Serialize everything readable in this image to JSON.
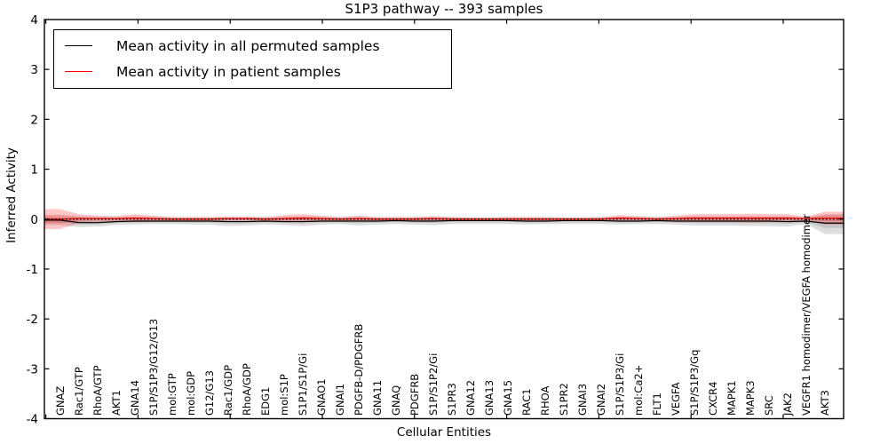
{
  "title": "S1P3 pathway -- 393 samples",
  "axes": {
    "ylabel": "Inferred Activity",
    "xlabel": "Cellular Entities",
    "y_tick_values": [
      4,
      3,
      2,
      1,
      0,
      -1,
      -2,
      -3,
      -4
    ],
    "y_tick_labels": [
      "4",
      "3",
      "2",
      "1",
      "0",
      "-1",
      "-2",
      "-3",
      "-4"
    ]
  },
  "legend": {
    "items": [
      {
        "label": "Mean activity in all permuted samples",
        "color": "#000000"
      },
      {
        "label": "Mean activity in patient samples",
        "color": "#ff0000"
      }
    ]
  },
  "chart_data": {
    "type": "line",
    "title": "S1P3 pathway -- 393 samples",
    "xlabel": "Cellular Entities",
    "ylabel": "Inferred Activity",
    "ylim": [
      -4,
      4
    ],
    "grid": false,
    "legend_position": "upper left",
    "zero_line": 0,
    "categories": [
      "GNAZ",
      "Rac1/GTP",
      "RhoA/GTP",
      "AKT1",
      "GNA14",
      "S1P/S1P3/G12/G13",
      "mol:GTP",
      "mol:GDP",
      "G12/G13",
      "Rac1/GDP",
      "RhoA/GDP",
      "EDG1",
      "mol:S1P",
      "S1P1/S1P/Gi",
      "GNAO1",
      "GNAI1",
      "PDGFB-D/PDGFRB",
      "GNA11",
      "GNAQ",
      "PDGFRB",
      "S1P/S1P2/Gi",
      "S1PR3",
      "GNA12",
      "GNA13",
      "GNA15",
      "RAC1",
      "RHOA",
      "S1PR2",
      "GNAI3",
      "GNAI2",
      "S1P/S1P3/Gi",
      "mol:Ca2+",
      "FLT1",
      "VEGFA",
      "S1P/S1P3/Gq",
      "CXCR4",
      "MAPK1",
      "MAPK3",
      "SRC",
      "JAK2",
      "VEGFR1 homodimer/VEGFA homodimer",
      "AKT3"
    ],
    "series": [
      {
        "name": "Mean activity in all permuted samples",
        "color": "#000000",
        "band_color": "#000000",
        "band_alpha": 0.13,
        "mean": [
          -0.02,
          -0.07,
          -0.07,
          -0.05,
          -0.04,
          -0.04,
          -0.04,
          -0.04,
          -0.04,
          -0.05,
          -0.05,
          -0.04,
          -0.05,
          -0.05,
          -0.04,
          -0.04,
          -0.04,
          -0.04,
          -0.03,
          -0.04,
          -0.04,
          -0.03,
          -0.03,
          -0.03,
          -0.03,
          -0.04,
          -0.04,
          -0.03,
          -0.03,
          -0.03,
          -0.04,
          -0.04,
          -0.03,
          -0.04,
          -0.04,
          -0.04,
          -0.04,
          -0.04,
          -0.04,
          -0.05,
          -0.04,
          -0.08
        ],
        "upper": [
          0.06,
          0.05,
          0.04,
          0.04,
          0.04,
          0.04,
          0.04,
          0.04,
          0.04,
          0.04,
          0.04,
          0.04,
          0.04,
          0.05,
          0.04,
          0.04,
          0.04,
          0.04,
          0.04,
          0.04,
          0.04,
          0.04,
          0.04,
          0.04,
          0.04,
          0.04,
          0.04,
          0.04,
          0.04,
          0.04,
          0.04,
          0.04,
          0.04,
          0.04,
          0.05,
          0.05,
          0.05,
          0.05,
          0.05,
          0.05,
          0.03,
          0.1
        ],
        "lower": [
          -0.12,
          -0.16,
          -0.15,
          -0.12,
          -0.11,
          -0.1,
          -0.1,
          -0.11,
          -0.11,
          -0.14,
          -0.13,
          -0.11,
          -0.12,
          -0.14,
          -0.11,
          -0.1,
          -0.13,
          -0.11,
          -0.1,
          -0.11,
          -0.12,
          -0.1,
          -0.1,
          -0.1,
          -0.1,
          -0.11,
          -0.1,
          -0.1,
          -0.1,
          -0.1,
          -0.11,
          -0.1,
          -0.1,
          -0.11,
          -0.13,
          -0.13,
          -0.13,
          -0.14,
          -0.14,
          -0.15,
          -0.1,
          -0.3
        ]
      },
      {
        "name": "Mean activity in patient samples",
        "color": "#ff0000",
        "band_color": "#ff0000",
        "band_alpha": 0.22,
        "mean": [
          0.0,
          0.01,
          0.01,
          0.01,
          0.02,
          0.01,
          0.0,
          0.0,
          0.0,
          0.01,
          0.01,
          0.0,
          0.01,
          0.02,
          0.01,
          0.0,
          0.01,
          0.0,
          0.0,
          0.0,
          0.01,
          0.0,
          0.0,
          0.0,
          0.0,
          0.0,
          0.0,
          0.0,
          0.0,
          0.0,
          0.02,
          0.01,
          0.0,
          0.01,
          0.02,
          0.02,
          0.02,
          0.02,
          0.02,
          0.02,
          0.01,
          0.02
        ],
        "upper": [
          0.2,
          0.1,
          0.07,
          0.06,
          0.1,
          0.07,
          0.04,
          0.04,
          0.04,
          0.05,
          0.05,
          0.04,
          0.08,
          0.1,
          0.07,
          0.04,
          0.07,
          0.04,
          0.04,
          0.04,
          0.06,
          0.04,
          0.03,
          0.03,
          0.04,
          0.04,
          0.04,
          0.03,
          0.03,
          0.04,
          0.08,
          0.06,
          0.04,
          0.07,
          0.1,
          0.1,
          0.1,
          0.11,
          0.1,
          0.1,
          0.05,
          0.15
        ],
        "lower": [
          -0.2,
          -0.08,
          -0.05,
          -0.04,
          -0.06,
          -0.05,
          -0.04,
          -0.04,
          -0.04,
          -0.03,
          -0.03,
          -0.04,
          -0.06,
          -0.06,
          -0.05,
          -0.04,
          -0.05,
          -0.04,
          -0.04,
          -0.04,
          -0.04,
          -0.04,
          -0.03,
          -0.03,
          -0.04,
          -0.04,
          -0.04,
          -0.03,
          -0.03,
          -0.04,
          -0.04,
          -0.04,
          -0.04,
          -0.05,
          -0.06,
          -0.06,
          -0.06,
          -0.07,
          -0.06,
          -0.06,
          -0.03,
          -0.11
        ]
      }
    ]
  }
}
